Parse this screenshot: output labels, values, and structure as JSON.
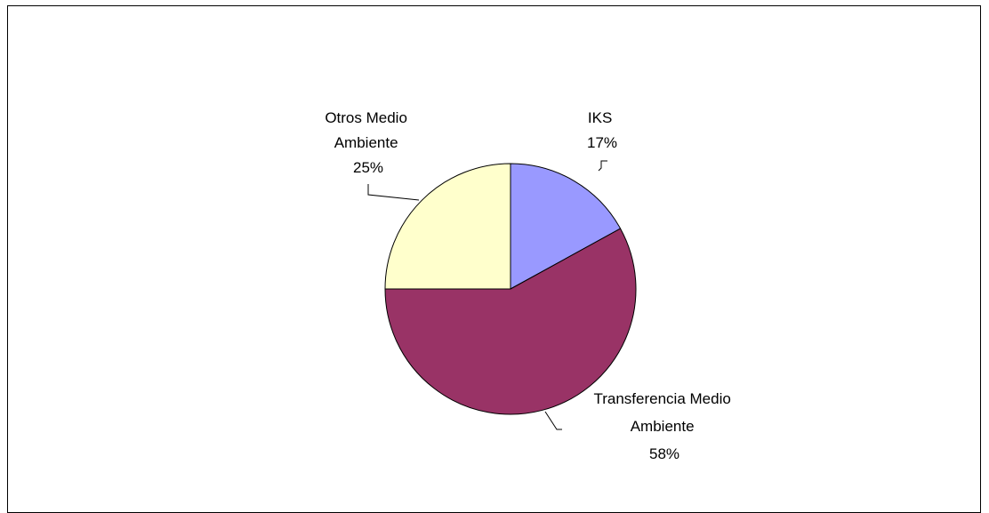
{
  "chart_data": {
    "type": "pie",
    "slices": [
      {
        "name": "IKS",
        "value": 17,
        "label_lines": [
          "IKS",
          "17%"
        ],
        "color": "#9999ff"
      },
      {
        "name": "Transferencia Medio Ambiente",
        "value": 58,
        "label_lines": [
          "Transferencia Medio",
          "Ambiente",
          "58%"
        ],
        "color": "#993366"
      },
      {
        "name": "Otros Medio Ambiente",
        "value": 25,
        "label_lines": [
          "Otros Medio",
          "Ambiente",
          "25%"
        ],
        "color": "#ffffcc"
      }
    ],
    "start_angle": "12 o'clock",
    "direction": "clockwise",
    "legend": "none",
    "slice_outline_color": "#000000"
  }
}
